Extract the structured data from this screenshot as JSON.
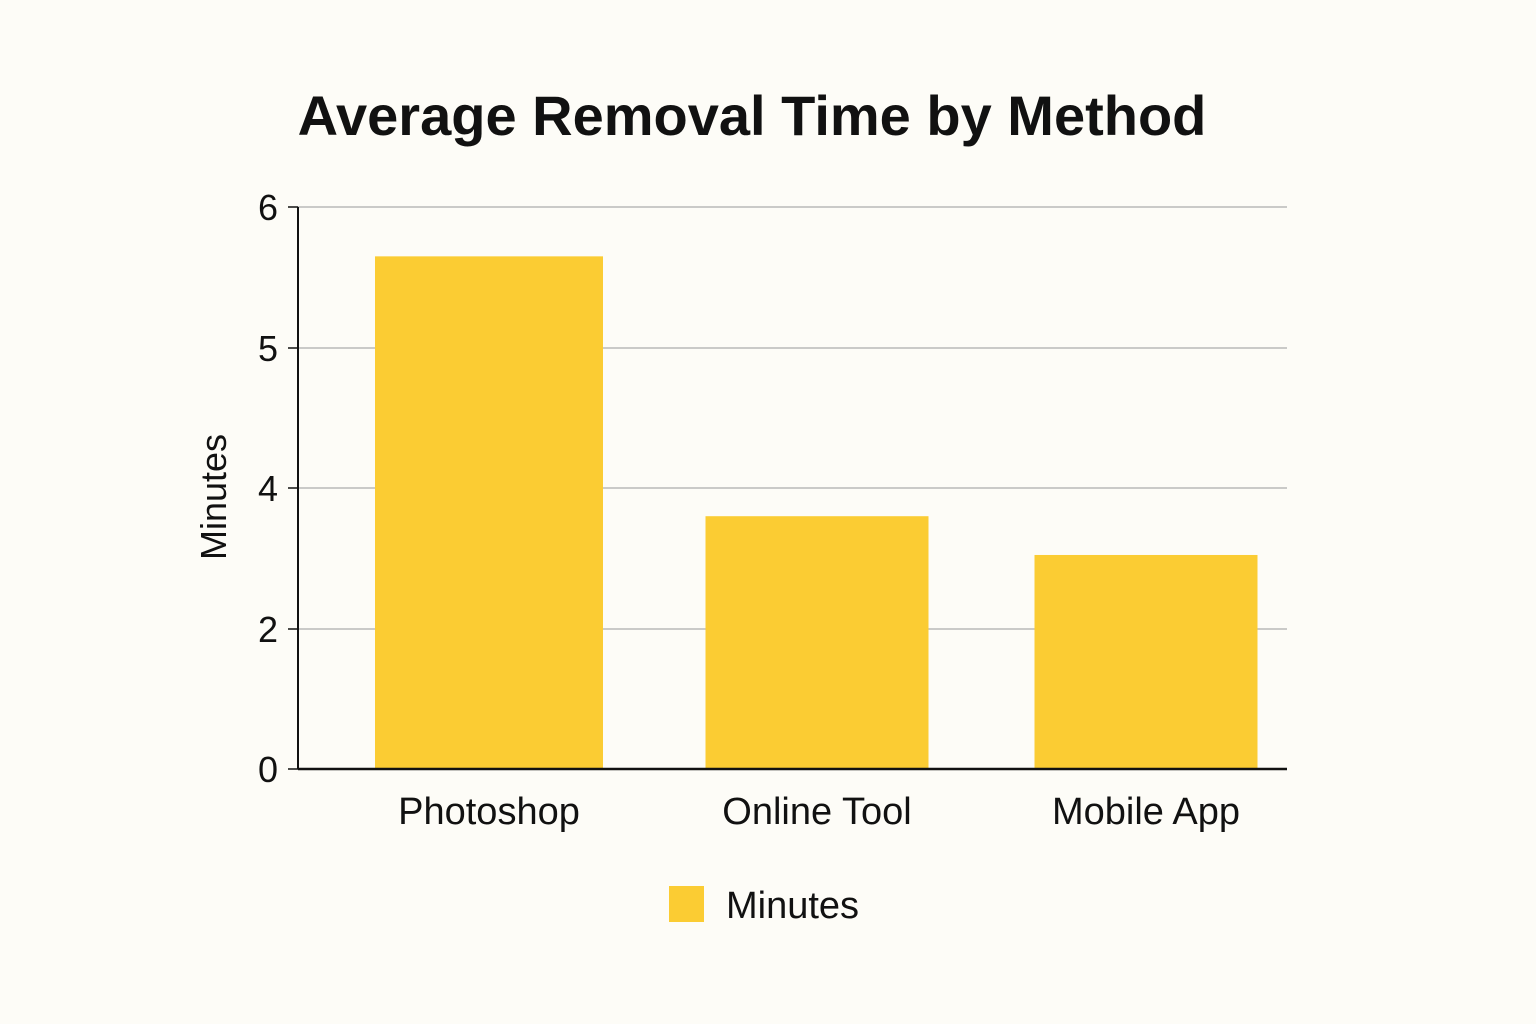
{
  "chart_data": {
    "type": "bar",
    "title": "Average Removal Time by Method",
    "xlabel": "",
    "ylabel": "Minutes",
    "categories": [
      "Photoshop",
      "Online Tool",
      "Mobile App"
    ],
    "series": [
      {
        "name": "Minutes",
        "values": [
          5.65,
          3.6,
          3.05
        ]
      }
    ],
    "ylim": [
      0,
      6
    ],
    "yticks": [
      0,
      2,
      4,
      5,
      6
    ],
    "grid": true,
    "legend": "bottom-center",
    "colors": {
      "bar": "#fbcc33",
      "grid": "#b9b9b9",
      "axis": "#111111",
      "background": "#fdfcf7"
    }
  }
}
